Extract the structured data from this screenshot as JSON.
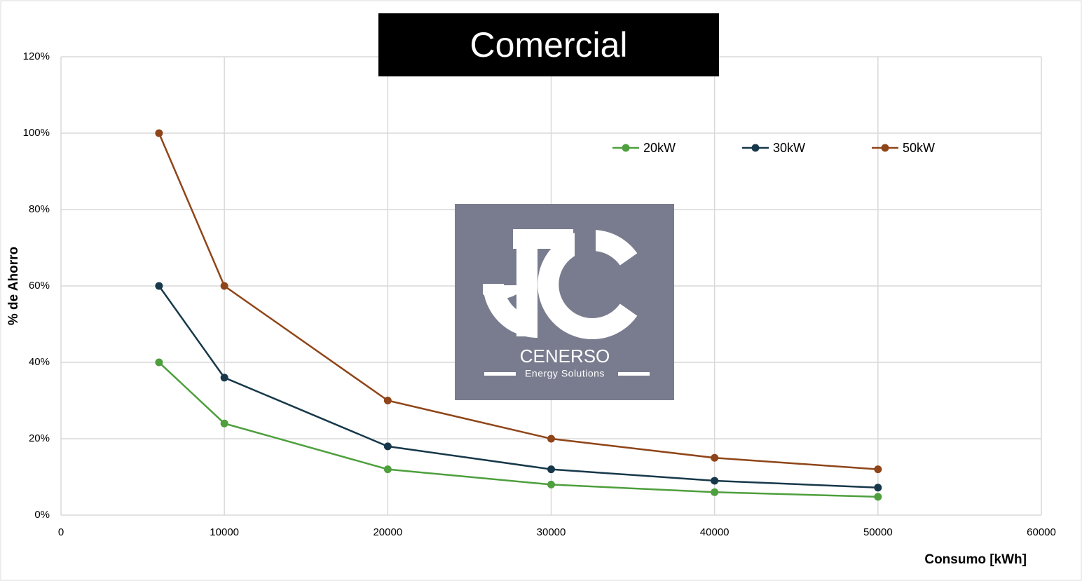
{
  "chart_data": {
    "type": "line",
    "title": "Comercial",
    "x_label": "Consumo [kWh]",
    "y_label": "% de Ahorro",
    "watermark": {
      "name": "CENERSO",
      "tagline": "Energy Solutions"
    },
    "x": [
      6000,
      10000,
      20000,
      30000,
      40000,
      50000
    ],
    "series": [
      {
        "name": "20kW",
        "color": "#4e9f3d",
        "values": [
          40,
          24,
          12,
          8,
          6,
          4.8
        ]
      },
      {
        "name": "30kW",
        "color": "#17384a",
        "values": [
          60,
          36,
          18,
          12,
          9,
          7.2
        ]
      },
      {
        "name": "50kW",
        "color": "#8f4519",
        "values": [
          100,
          60,
          30,
          20,
          15,
          12
        ]
      }
    ],
    "xlim": [
      0,
      60000
    ],
    "xticks": [
      0,
      10000,
      20000,
      30000,
      40000,
      50000,
      60000
    ],
    "ylim": [
      0,
      120
    ],
    "yticks": [
      {
        "value": 0,
        "label": "0%"
      },
      {
        "value": 20,
        "label": "20%"
      },
      {
        "value": 40,
        "label": "40%"
      },
      {
        "value": 60,
        "label": "60%"
      },
      {
        "value": 80,
        "label": "80%"
      },
      {
        "value": 100,
        "label": "100%"
      },
      {
        "value": 120,
        "label": "120%"
      }
    ],
    "grid": true,
    "legend": "upper right"
  }
}
